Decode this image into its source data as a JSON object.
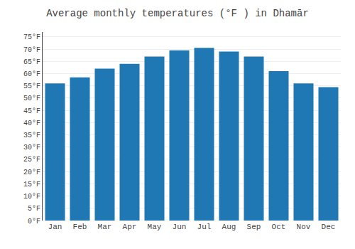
{
  "chart_data": {
    "type": "bar",
    "title": "Average monthly temperatures (°F ) in Dhamār",
    "categories": [
      "Jan",
      "Feb",
      "Mar",
      "Apr",
      "May",
      "Jun",
      "Jul",
      "Aug",
      "Sep",
      "Oct",
      "Nov",
      "Dec"
    ],
    "values": [
      56,
      58.5,
      62,
      64,
      67,
      69.5,
      70.5,
      69,
      67,
      61,
      56,
      54.5
    ],
    "ylim": [
      0,
      77
    ],
    "yticks": [
      {
        "value": 0,
        "label": "0°F"
      },
      {
        "value": 5,
        "label": "5°F"
      },
      {
        "value": 10,
        "label": "10°F"
      },
      {
        "value": 15,
        "label": "15°F"
      },
      {
        "value": 20,
        "label": "20°F"
      },
      {
        "value": 25,
        "label": "25°F"
      },
      {
        "value": 30,
        "label": "30°F"
      },
      {
        "value": 35,
        "label": "35°F"
      },
      {
        "value": 40,
        "label": "40°F"
      },
      {
        "value": 45,
        "label": "45°F"
      },
      {
        "value": 50,
        "label": "50°F"
      },
      {
        "value": 55,
        "label": "55°F"
      },
      {
        "value": 60,
        "label": "60°F"
      },
      {
        "value": 65,
        "label": "65°F"
      },
      {
        "value": 70,
        "label": "70°F"
      },
      {
        "value": 75,
        "label": "75°F"
      }
    ],
    "grid": true
  }
}
